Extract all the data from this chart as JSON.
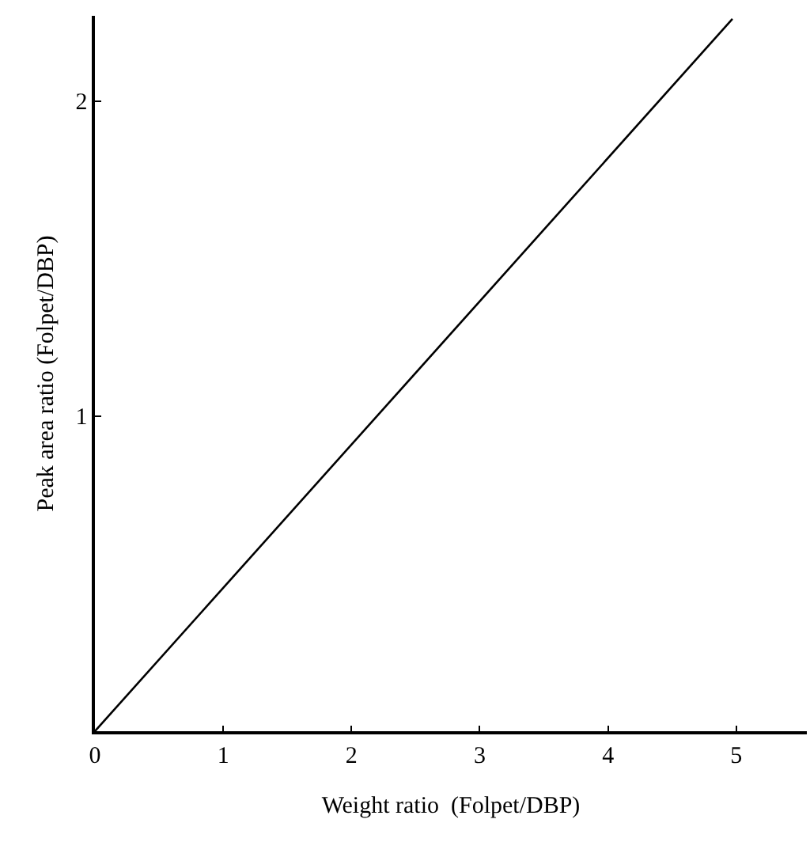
{
  "chart_data": {
    "type": "line",
    "xlabel": "Weight ratio  (Folpet/DBP)",
    "ylabel": "Peak area ratio (Folpet/DBP)",
    "x": [
      0,
      4.97
    ],
    "series": [
      {
        "color": "#000000",
        "values": [
          0,
          2.26
        ]
      }
    ],
    "xlim": [
      0,
      5.55
    ],
    "xticks": [
      0,
      1,
      2,
      3,
      4,
      5
    ],
    "ylim": [
      0,
      2.27
    ],
    "yticks": [
      1,
      2
    ],
    "legend": false,
    "marker": "none",
    "line_style": "solid"
  }
}
